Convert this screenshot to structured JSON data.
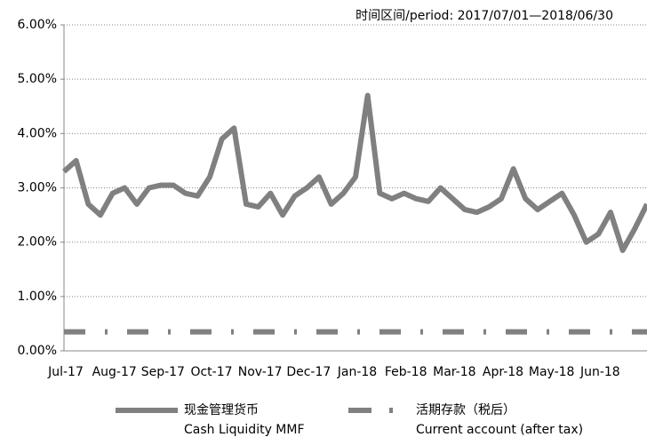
{
  "chart_data": {
    "type": "line",
    "title": "时间区间/period: 2017/07/01—2018/06/30",
    "categories": [
      "Jul-17",
      null,
      null,
      null,
      "Aug-17",
      null,
      null,
      null,
      "Sep-17",
      null,
      null,
      null,
      "Oct-17",
      null,
      null,
      null,
      "Nov-17",
      null,
      null,
      null,
      "Dec-17",
      null,
      null,
      null,
      "Jan-18",
      null,
      null,
      null,
      "Feb-18",
      null,
      null,
      null,
      "Mar-18",
      null,
      null,
      null,
      "Apr-18",
      null,
      null,
      null,
      "May-18",
      null,
      null,
      null,
      "Jun-18",
      null,
      null,
      null,
      null
    ],
    "series": [
      {
        "name": "现金管理货币\nCash Liquidity MMF",
        "color": "#808080",
        "style": "solid",
        "values": [
          3.3,
          3.5,
          2.7,
          2.5,
          2.9,
          3.0,
          2.7,
          3.0,
          3.05,
          3.05,
          2.9,
          2.85,
          3.2,
          3.9,
          4.1,
          2.7,
          2.65,
          2.9,
          2.5,
          2.85,
          3.0,
          3.2,
          2.7,
          2.9,
          3.2,
          4.7,
          2.9,
          2.8,
          2.9,
          2.8,
          2.75,
          3.0,
          2.8,
          2.6,
          2.55,
          2.65,
          2.8,
          3.35,
          2.8,
          2.6,
          2.75,
          2.9,
          2.5,
          2.0,
          2.15,
          2.55,
          1.85,
          2.25,
          2.7
        ]
      },
      {
        "name": "活期存款（税后）\nCurrent account (after tax)",
        "color": "#808080",
        "style": "dashdot",
        "values": [
          0.35,
          0.35,
          0.35,
          0.35,
          0.35,
          0.35,
          0.35,
          0.35,
          0.35,
          0.35,
          0.35,
          0.35,
          0.35,
          0.35,
          0.35,
          0.35,
          0.35,
          0.35,
          0.35,
          0.35,
          0.35,
          0.35,
          0.35,
          0.35,
          0.35,
          0.35,
          0.35,
          0.35,
          0.35,
          0.35,
          0.35,
          0.35,
          0.35,
          0.35,
          0.35,
          0.35,
          0.35,
          0.35,
          0.35,
          0.35,
          0.35,
          0.35,
          0.35,
          0.35,
          0.35,
          0.35,
          0.35,
          0.35,
          0.35
        ]
      }
    ],
    "ylim": [
      0,
      6
    ],
    "yticks": [
      {
        "value": 0,
        "label": "0.00%"
      },
      {
        "value": 1,
        "label": "1.00%"
      },
      {
        "value": 2,
        "label": "2.00%"
      },
      {
        "value": 3,
        "label": "3.00%"
      },
      {
        "value": 4,
        "label": "4.00%"
      },
      {
        "value": 5,
        "label": "5.00%"
      },
      {
        "value": 6,
        "label": "6.00%"
      }
    ],
    "grid": true
  }
}
